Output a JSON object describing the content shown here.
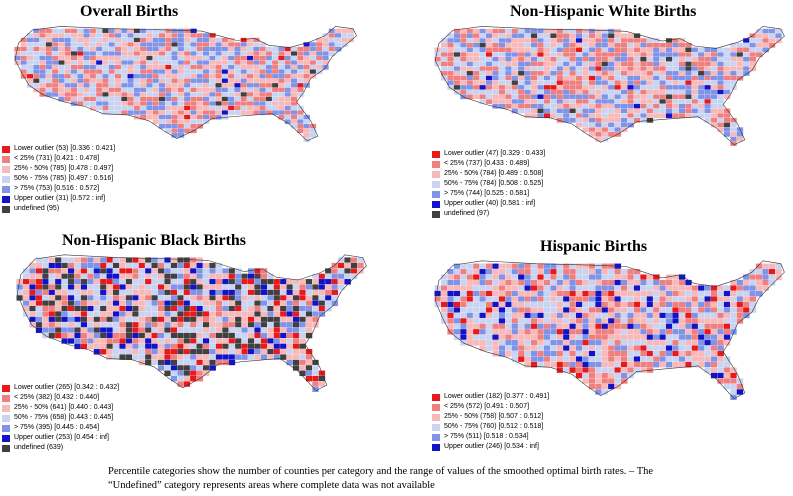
{
  "colors": {
    "lower_outlier": "#e8191b",
    "lt25": "#f08080",
    "p25_50": "#f7b9b9",
    "p50_75": "#c9d3f2",
    "gt75": "#7f93e8",
    "upper_outlier": "#1212c8",
    "undefined": "#404040"
  },
  "panels": [
    {
      "id": "overall",
      "title": "Overall Births",
      "legend": [
        {
          "cat": "lower_outlier",
          "label": "Lower outlier (53)  [0.336 : 0.421]"
        },
        {
          "cat": "lt25",
          "label": "< 25% (731)  [0.421 : 0.478]"
        },
        {
          "cat": "p25_50",
          "label": "25% - 50% (785)  [0.478 : 0.497]"
        },
        {
          "cat": "p50_75",
          "label": "50% - 75% (785)  [0.497 : 0.516]"
        },
        {
          "cat": "gt75",
          "label": "> 75% (753)  [0.516 : 0.572]"
        },
        {
          "cat": "upper_outlier",
          "label": "Upper outlier (31)  [0.572 : inf]"
        },
        {
          "cat": "undefined",
          "label": "undefined (95)"
        }
      ],
      "distribution": {
        "lower_outlier": 53,
        "lt25": 731,
        "p25_50": 785,
        "p50_75": 785,
        "gt75": 753,
        "upper_outlier": 31,
        "undefined": 95
      }
    },
    {
      "id": "nh_white",
      "title": "Non-Hispanic White Births",
      "legend": [
        {
          "cat": "lower_outlier",
          "label": "Lower outlier (47)  [0.329 : 0.433]"
        },
        {
          "cat": "lt25",
          "label": "< 25% (737)  [0.433 : 0.489]"
        },
        {
          "cat": "p25_50",
          "label": "25% - 50% (784)  [0.489 : 0.508]"
        },
        {
          "cat": "p50_75",
          "label": "50% - 75% (784)  [0.508 : 0.525]"
        },
        {
          "cat": "gt75",
          "label": "> 75% (744)  [0.525 : 0.581]"
        },
        {
          "cat": "upper_outlier",
          "label": "Upper outlier (40)  [0.581 : inf]"
        },
        {
          "cat": "undefined",
          "label": "undefined (97)"
        }
      ],
      "distribution": {
        "lower_outlier": 47,
        "lt25": 737,
        "p25_50": 784,
        "p50_75": 784,
        "gt75": 744,
        "upper_outlier": 40,
        "undefined": 97
      }
    },
    {
      "id": "nh_black",
      "title": "Non-Hispanic Black Births",
      "legend": [
        {
          "cat": "lower_outlier",
          "label": "Lower outlier (265)  [0.342 : 0.432]"
        },
        {
          "cat": "lt25",
          "label": "< 25% (382)  [0.432 : 0.440]"
        },
        {
          "cat": "p25_50",
          "label": "25% - 50% (641)  [0.440 : 0.443]"
        },
        {
          "cat": "p50_75",
          "label": "50% - 75% (658)  [0.443 : 0.445]"
        },
        {
          "cat": "gt75",
          "label": "> 75% (395)  [0.445 : 0.454]"
        },
        {
          "cat": "upper_outlier",
          "label": "Upper outlier (253)  [0.454 : inf]"
        },
        {
          "cat": "undefined",
          "label": "undefined (639)"
        }
      ],
      "distribution": {
        "lower_outlier": 265,
        "lt25": 382,
        "p25_50": 641,
        "p50_75": 658,
        "gt75": 395,
        "upper_outlier": 253,
        "undefined": 639
      }
    },
    {
      "id": "hispanic",
      "title": "Hispanic Births",
      "legend": [
        {
          "cat": "lower_outlier",
          "label": "Lower outlier (182)  [0.377 : 0.491]"
        },
        {
          "cat": "lt25",
          "label": "< 25% (572)  [0.491 : 0.507]"
        },
        {
          "cat": "p25_50",
          "label": "25% - 50% (758)  [0.507 : 0.512]"
        },
        {
          "cat": "p50_75",
          "label": "50% - 75% (760)  [0.512 : 0.518]"
        },
        {
          "cat": "gt75",
          "label": "> 75% (511)  [0.518 : 0.534]"
        },
        {
          "cat": "upper_outlier",
          "label": "Upper outlier (246)  [0.534 : inf]"
        }
      ],
      "distribution": {
        "lower_outlier": 182,
        "lt25": 572,
        "p25_50": 758,
        "p50_75": 760,
        "gt75": 511,
        "upper_outlier": 246,
        "undefined": 0
      }
    }
  ],
  "caption": "Percentile categories show the number of counties per category and the range of values of the smoothed optimal birth rates. – The “Undefined” category represents areas where complete data was not available"
}
